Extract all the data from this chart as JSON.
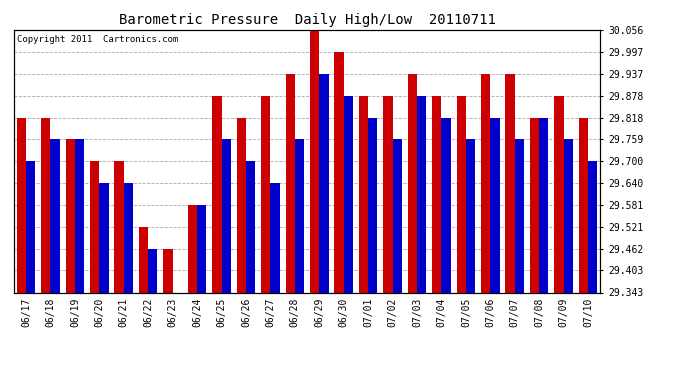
{
  "title": "Barometric Pressure  Daily High/Low  20110711",
  "copyright": "Copyright 2011  Cartronics.com",
  "dates": [
    "06/17",
    "06/18",
    "06/19",
    "06/20",
    "06/21",
    "06/22",
    "06/23",
    "06/24",
    "06/25",
    "06/26",
    "06/27",
    "06/28",
    "06/29",
    "06/30",
    "07/01",
    "07/02",
    "07/03",
    "07/04",
    "07/05",
    "07/06",
    "07/07",
    "07/08",
    "07/09",
    "07/10"
  ],
  "highs": [
    29.818,
    29.818,
    29.759,
    29.7,
    29.7,
    29.521,
    29.462,
    29.581,
    29.878,
    29.818,
    29.878,
    29.937,
    30.056,
    29.997,
    29.878,
    29.878,
    29.937,
    29.878,
    29.878,
    29.937,
    29.937,
    29.818,
    29.878,
    29.818
  ],
  "lows": [
    29.7,
    29.759,
    29.759,
    29.64,
    29.64,
    29.462,
    29.343,
    29.581,
    29.759,
    29.7,
    29.64,
    29.759,
    29.937,
    29.878,
    29.818,
    29.759,
    29.878,
    29.818,
    29.759,
    29.818,
    29.759,
    29.818,
    29.759,
    29.7
  ],
  "high_color": "#cc0000",
  "low_color": "#0000cc",
  "yticks": [
    29.343,
    29.403,
    29.462,
    29.521,
    29.581,
    29.64,
    29.7,
    29.759,
    29.818,
    29.878,
    29.937,
    29.997,
    30.056
  ],
  "ymin": 29.343,
  "ymax": 30.056,
  "background_color": "#ffffff",
  "grid_color": "#aaaaaa",
  "bar_width": 0.38,
  "title_fontsize": 10,
  "tick_fontsize": 7
}
